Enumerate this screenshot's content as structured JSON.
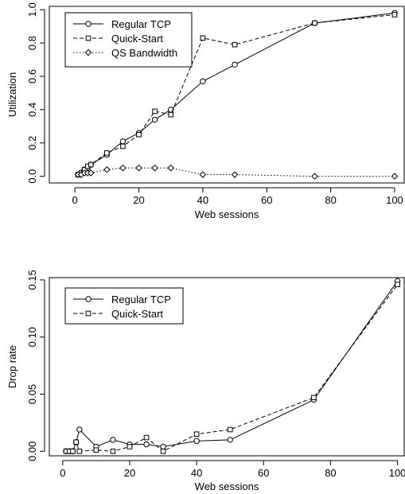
{
  "chart_data": [
    {
      "type": "line",
      "xlabel": "Web sessions",
      "ylabel": "Utilization",
      "xlim": [
        -8,
        103
      ],
      "ylim": [
        -0.04,
        1.02
      ],
      "xticks": [
        0,
        20,
        40,
        60,
        80,
        100
      ],
      "yticks": [
        0.0,
        0.2,
        0.4,
        0.6,
        0.8,
        1.0
      ],
      "xtick_labels": [
        "0",
        "20",
        "40",
        "60",
        "80",
        "100"
      ],
      "ytick_labels": [
        "0.0",
        "0.2",
        "0.4",
        "0.6",
        "0.8",
        "1.0"
      ],
      "grid": false,
      "legend_position": "top-left",
      "series": [
        {
          "name": "Regular TCP",
          "line": "solid",
          "marker": "circle",
          "x": [
            1,
            2,
            3,
            4,
            5,
            10,
            15,
            20,
            25,
            30,
            40,
            50,
            75,
            100
          ],
          "y": [
            0.01,
            0.02,
            0.04,
            0.05,
            0.07,
            0.13,
            0.21,
            0.26,
            0.34,
            0.4,
            0.57,
            0.67,
            0.92,
            0.98
          ]
        },
        {
          "name": "Quick-Start",
          "line": "dashed",
          "marker": "square",
          "x": [
            1,
            2,
            3,
            4,
            5,
            10,
            15,
            20,
            25,
            30,
            40,
            50,
            75,
            100
          ],
          "y": [
            0.01,
            0.02,
            0.04,
            0.06,
            0.07,
            0.14,
            0.18,
            0.25,
            0.39,
            0.37,
            0.83,
            0.79,
            0.92,
            0.97
          ]
        },
        {
          "name": "QS Bandwidth",
          "line": "dotted",
          "marker": "diamond",
          "x": [
            1,
            2,
            3,
            4,
            5,
            10,
            15,
            20,
            25,
            30,
            40,
            50,
            75,
            100
          ],
          "y": [
            0.01,
            0.01,
            0.02,
            0.02,
            0.02,
            0.04,
            0.05,
            0.05,
            0.05,
            0.05,
            0.01,
            0.01,
            0.0,
            0.0
          ]
        }
      ]
    },
    {
      "type": "line",
      "xlabel": "Web sessions",
      "ylabel": "Drop rate",
      "xlim": [
        -4,
        102
      ],
      "ylim": [
        -0.004,
        0.152
      ],
      "xticks": [
        0,
        20,
        40,
        60,
        80,
        100
      ],
      "yticks": [
        0.0,
        0.05,
        0.1,
        0.15
      ],
      "xtick_labels": [
        "0",
        "20",
        "40",
        "60",
        "80",
        "100"
      ],
      "ytick_labels": [
        "0.00",
        "0.05",
        "0.10",
        "0.15"
      ],
      "grid": false,
      "legend_position": "top-left",
      "series": [
        {
          "name": "Regular TCP",
          "line": "solid",
          "marker": "circle",
          "x": [
            1,
            2,
            3,
            4,
            5,
            10,
            15,
            20,
            25,
            30,
            40,
            50,
            75,
            100
          ],
          "y": [
            0.0,
            0.0,
            0.0,
            0.008,
            0.019,
            0.004,
            0.01,
            0.006,
            0.006,
            0.004,
            0.009,
            0.01,
            0.045,
            0.149
          ]
        },
        {
          "name": "Quick-Start",
          "line": "dashed",
          "marker": "square",
          "x": [
            1,
            2,
            3,
            4,
            5,
            10,
            15,
            20,
            25,
            30,
            40,
            50,
            75,
            100
          ],
          "y": [
            0.0,
            0.0,
            0.0,
            0.008,
            0.0,
            0.001,
            0.0,
            0.004,
            0.012,
            0.0,
            0.015,
            0.019,
            0.047,
            0.146
          ]
        }
      ]
    }
  ]
}
